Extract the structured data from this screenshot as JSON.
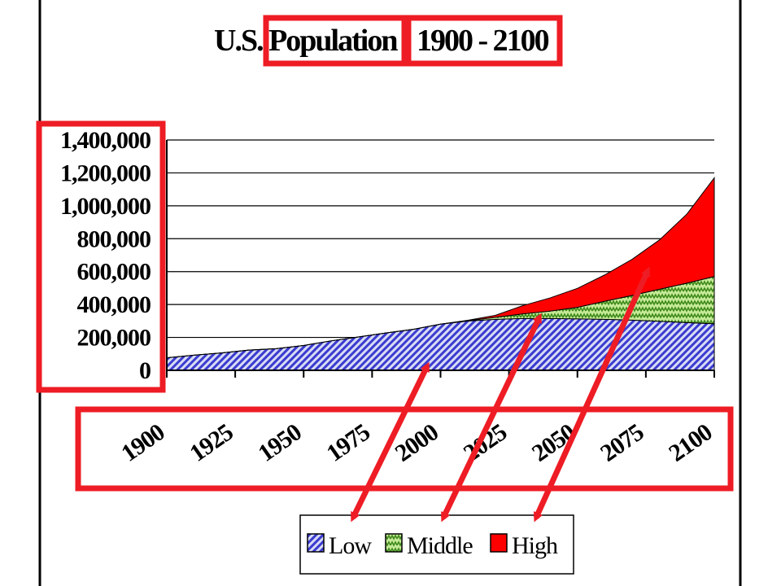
{
  "chart_data": {
    "type": "area",
    "stacked": true,
    "title_part1": "U.S. Population",
    "title_part2": "1900 - 2100",
    "x_ticks": [
      "1900",
      "1925",
      "1950",
      "1975",
      "2000",
      "2025",
      "2050",
      "2075",
      "2100"
    ],
    "y_ticks": [
      "0",
      "200,000",
      "400,000",
      "600,000",
      "800,000",
      "1,000,000",
      "1,200,000",
      "1,400,000"
    ],
    "xlim": [
      1900,
      2100
    ],
    "ylim": [
      0,
      1400000
    ],
    "grid": "horizontal",
    "legend_position": "bottom",
    "x": [
      1900,
      1910,
      1920,
      1930,
      1940,
      1950,
      1960,
      1970,
      1980,
      1990,
      2000,
      2010,
      2020,
      2030,
      2040,
      2050,
      2060,
      2070,
      2080,
      2090,
      2100
    ],
    "series": [
      {
        "name": "Low",
        "color": "#3b3bd0",
        "pattern": "diagonal-hatch",
        "values": [
          76000,
          92000,
          106000,
          123000,
          132000,
          151000,
          179000,
          203000,
          227000,
          249000,
          281000,
          300000,
          310000,
          315000,
          315000,
          313000,
          310000,
          305000,
          298000,
          290000,
          283000
        ]
      },
      {
        "name": "Middle",
        "color": "#7ac143",
        "pattern": "zigzag",
        "values": [
          0,
          0,
          0,
          0,
          0,
          0,
          0,
          0,
          0,
          0,
          0,
          2000,
          12000,
          28000,
          45000,
          70000,
          110000,
          150000,
          195000,
          240000,
          287000
        ]
      },
      {
        "name": "High",
        "color": "#ff0000",
        "pattern": "solid",
        "values": [
          0,
          0,
          0,
          0,
          0,
          0,
          0,
          0,
          0,
          0,
          0,
          2000,
          12000,
          50000,
          80000,
          115000,
          160000,
          220000,
          300000,
          420000,
          600000
        ]
      }
    ]
  }
}
